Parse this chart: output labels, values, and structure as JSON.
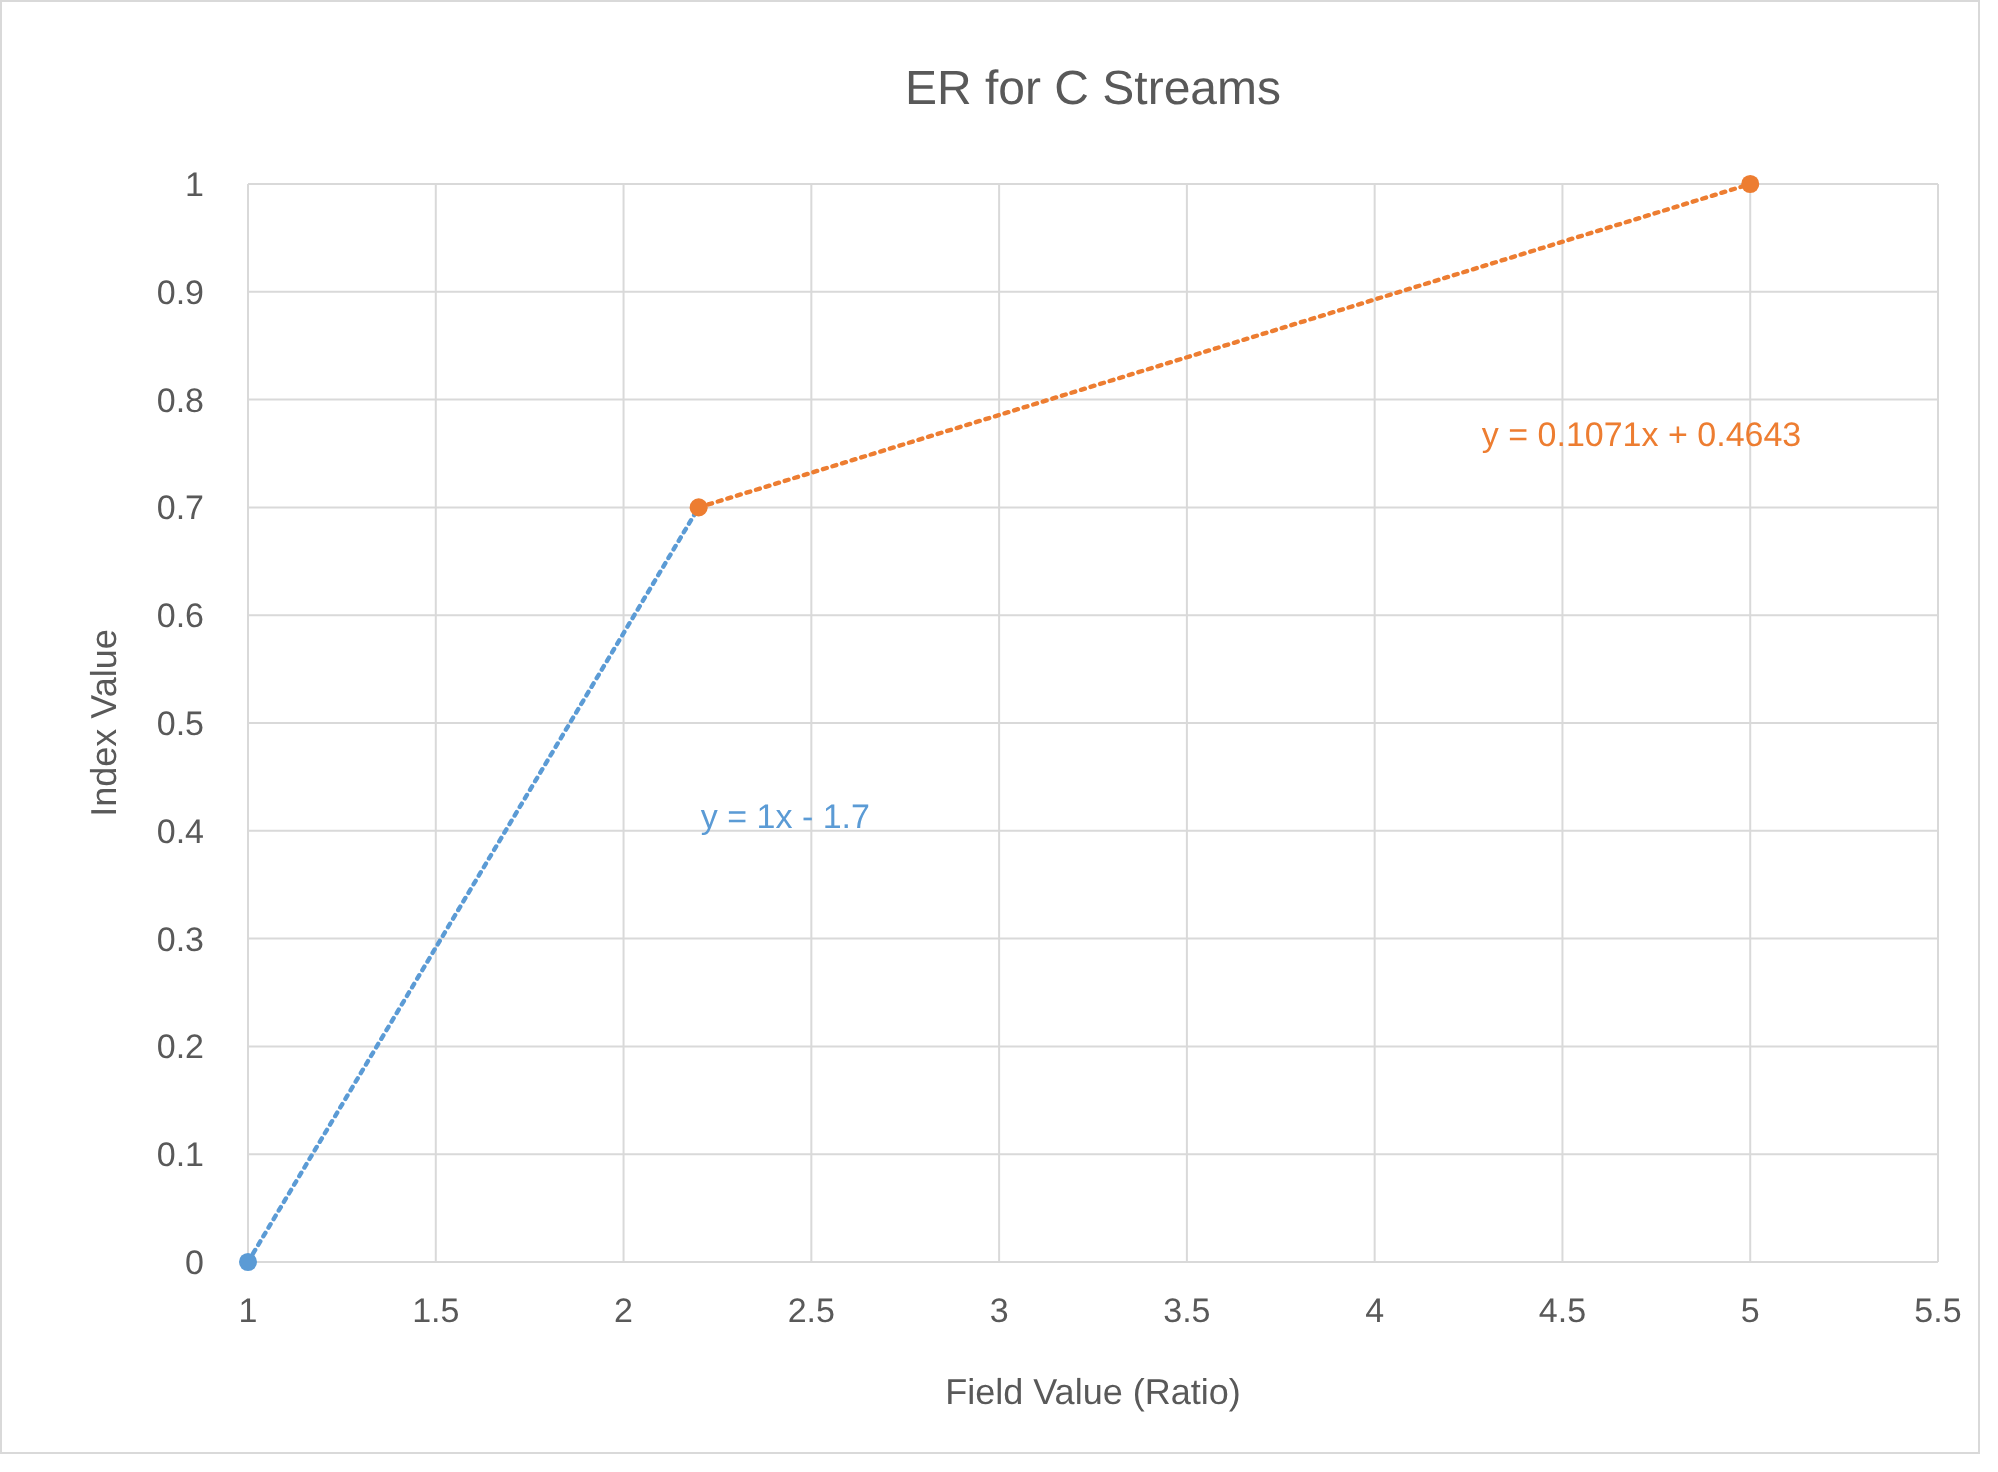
{
  "chart_data": {
    "type": "scatter",
    "title": "ER for C Streams",
    "xlabel": "Field Value (Ratio)",
    "ylabel": "Index Value",
    "xlim": [
      1,
      5.5
    ],
    "xticks": [
      1,
      1.5,
      2,
      2.5,
      3,
      3.5,
      4,
      4.5,
      5,
      5.5
    ],
    "ylim": [
      0,
      1
    ],
    "yticks": [
      0,
      0.1,
      0.2,
      0.3,
      0.4,
      0.5,
      0.6,
      0.7,
      0.8,
      0.9,
      1
    ],
    "grid": true,
    "series": [
      {
        "type": "line",
        "color": "#5b9bd5",
        "x": [
          1,
          2.2
        ],
        "values": [
          0,
          0.7
        ],
        "marker": "none",
        "line_style": "dotted"
      },
      {
        "type": "line",
        "color": "#ed7d31",
        "x": [
          2.2,
          5
        ],
        "values": [
          0.7,
          1
        ],
        "marker": "none",
        "line_style": "dotted"
      },
      {
        "color": "#5b9bd5",
        "x": [
          1
        ],
        "values": [
          0
        ],
        "marker": "circle"
      },
      {
        "color": "#ed7d31",
        "x": [
          2.2,
          5
        ],
        "values": [
          0.7,
          1
        ],
        "marker": "circle"
      }
    ],
    "annotations": [
      "y = 1x - 1.7",
      "y = 0.1071x + 0.4643"
    ]
  }
}
